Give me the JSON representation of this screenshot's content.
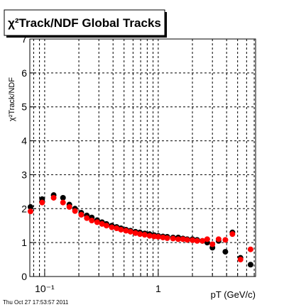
{
  "chart_data": {
    "type": "scatter",
    "title": "χ²Track/NDF  Global Tracks",
    "y_label": "χ²Track/NDF",
    "x_label": "pT (GeV/c)",
    "timestamp": "Thu Oct 27 17:53:57 2011",
    "x_log": true,
    "grid": true,
    "xlim": [
      0.074,
      7.2
    ],
    "ylim": [
      0,
      7
    ],
    "xticks": [
      {
        "value": 0.1,
        "label": "10⁻¹"
      },
      1
    ],
    "xminor": [
      0.08,
      0.09,
      0.2,
      0.3,
      0.4,
      0.5,
      0.6,
      0.7,
      0.8,
      0.9,
      2,
      3,
      4,
      5,
      6,
      7
    ],
    "yticks": [
      0,
      1,
      2,
      3,
      4,
      5,
      6,
      7
    ],
    "x": [
      0.075,
      0.095,
      0.12,
      0.145,
      0.165,
      0.185,
      0.21,
      0.235,
      0.26,
      0.29,
      0.32,
      0.35,
      0.39,
      0.43,
      0.47,
      0.52,
      0.57,
      0.63,
      0.69,
      0.76,
      0.84,
      0.92,
      1.0,
      1.1,
      1.2,
      1.35,
      1.5,
      1.65,
      1.8,
      2.0,
      2.2,
      2.45,
      2.7,
      3.0,
      3.4,
      3.9,
      4.5,
      5.3,
      6.5
    ],
    "series": [
      {
        "color": "#000000",
        "values": [
          2.05,
          2.28,
          2.4,
          2.32,
          2.12,
          2.0,
          1.88,
          1.8,
          1.74,
          1.66,
          1.6,
          1.55,
          1.5,
          1.46,
          1.42,
          1.38,
          1.35,
          1.32,
          1.3,
          1.27,
          1.25,
          1.22,
          1.2,
          1.18,
          1.17,
          1.15,
          1.15,
          1.12,
          1.1,
          1.1,
          1.08,
          1.05,
          1.0,
          0.85,
          1.05,
          0.73,
          1.3,
          0.55,
          0.35
        ]
      },
      {
        "color": "#ff0000",
        "values": [
          1.92,
          2.18,
          2.32,
          2.18,
          2.05,
          1.93,
          1.82,
          1.72,
          1.65,
          1.6,
          1.55,
          1.5,
          1.45,
          1.42,
          1.38,
          1.35,
          1.32,
          1.28,
          1.25,
          1.23,
          1.2,
          1.18,
          1.17,
          1.15,
          1.13,
          1.12,
          1.1,
          1.1,
          1.08,
          1.07,
          1.05,
          1.05,
          1.1,
          0.95,
          1.1,
          1.08,
          1.25,
          0.5,
          0.8
        ]
      }
    ]
  }
}
